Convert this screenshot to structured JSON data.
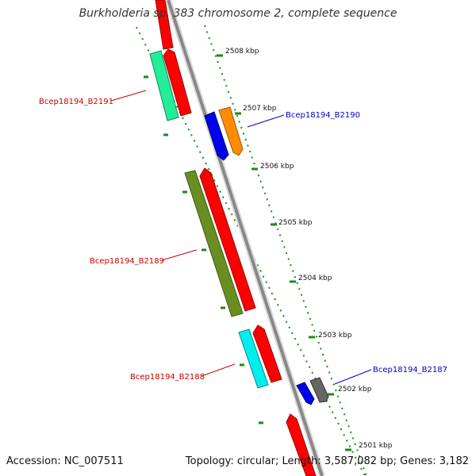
{
  "title": "Burkholderia sp. 383 chromosome 2, complete sequence",
  "footer": {
    "accession": "Accession: NC_007511",
    "summary": "Topology: circular; Length: 3,587,082 bp; Genes: 3,182"
  },
  "ticks": [
    "2508 kbp",
    "2507 kbp",
    "2506 kbp",
    "2505 kbp",
    "2504 kbp",
    "2503 kbp",
    "2502 kbp",
    "2501 kbp"
  ],
  "gene_labels": [
    {
      "text": "Bcep18194_B2191",
      "color": "#cc0000"
    },
    {
      "text": "Bcep18194_B2190",
      "color": "#0000cc"
    },
    {
      "text": "Bcep18194_B2189",
      "color": "#cc0000"
    },
    {
      "text": "Bcep18194_B2188",
      "color": "#cc0000"
    },
    {
      "text": "Bcep18194_B2187",
      "color": "#0000cc"
    }
  ],
  "colors": {
    "backbone": "#888888",
    "tick": "#1a8a1a",
    "cds": "#ff0000",
    "feature_green": "#22ee99",
    "feature_olive": "#6b8e23",
    "feature_cyan": "#00eeee",
    "feature_orange": "#ff8c00",
    "feature_blue": "#0000ee",
    "feature_grey": "#666666"
  }
}
